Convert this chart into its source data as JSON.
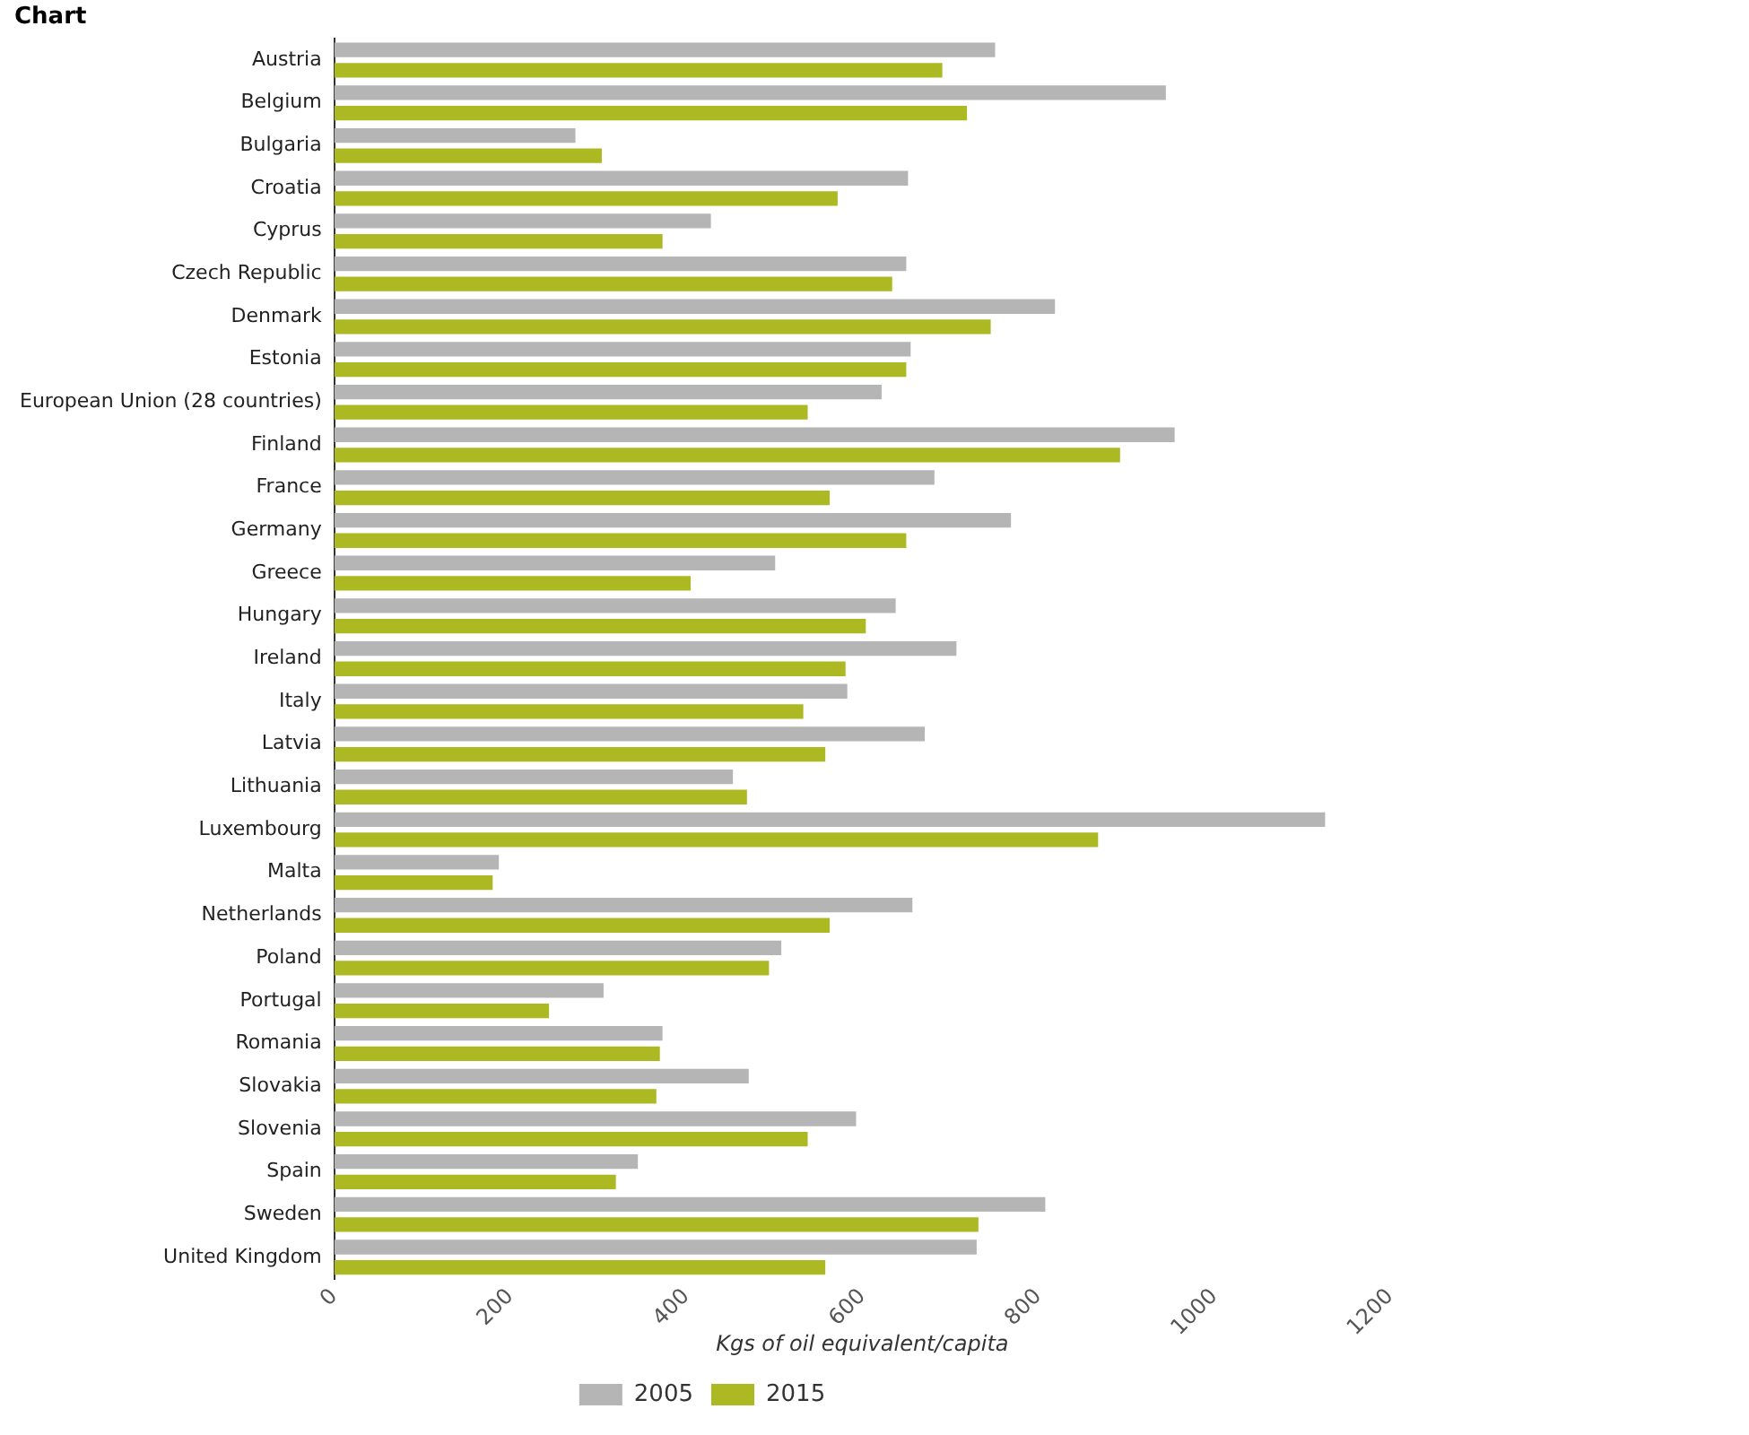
{
  "chart_data": {
    "type": "bar",
    "orientation": "horizontal",
    "title": "Chart",
    "xlabel": "Kgs of oil equivalent/capita",
    "categories": [
      "Austria",
      "Belgium",
      "Bulgaria",
      "Croatia",
      "Cyprus",
      "Czech Republic",
      "Denmark",
      "Estonia",
      "European Union (28 countries)",
      "Finland",
      "France",
      "Germany",
      "Greece",
      "Hungary",
      "Ireland",
      "Italy",
      "Latvia",
      "Lithuania",
      "Luxembourg",
      "Malta",
      "Netherlands",
      "Poland",
      "Portugal",
      "Romania",
      "Slovakia",
      "Slovenia",
      "Spain",
      "Sweden",
      "United Kingdom"
    ],
    "series": [
      {
        "name": "2005",
        "color": "#b5b5b5",
        "values": [
          751,
          945,
          274,
          652,
          428,
          650,
          819,
          655,
          622,
          955,
          682,
          769,
          501,
          638,
          707,
          583,
          671,
          453,
          1126,
          187,
          657,
          508,
          306,
          373,
          471,
          593,
          345,
          808,
          730
        ]
      },
      {
        "name": "2015",
        "color": "#adb922",
        "values": [
          691,
          719,
          304,
          572,
          373,
          634,
          746,
          650,
          538,
          893,
          563,
          650,
          405,
          604,
          581,
          533,
          558,
          469,
          868,
          180,
          563,
          494,
          244,
          370,
          366,
          538,
          320,
          732,
          558
        ]
      }
    ],
    "xlim": [
      0,
      1200
    ],
    "xticks": [
      0,
      200,
      400,
      600,
      800,
      1000,
      1200
    ],
    "grid": false,
    "legend": "bottom"
  }
}
